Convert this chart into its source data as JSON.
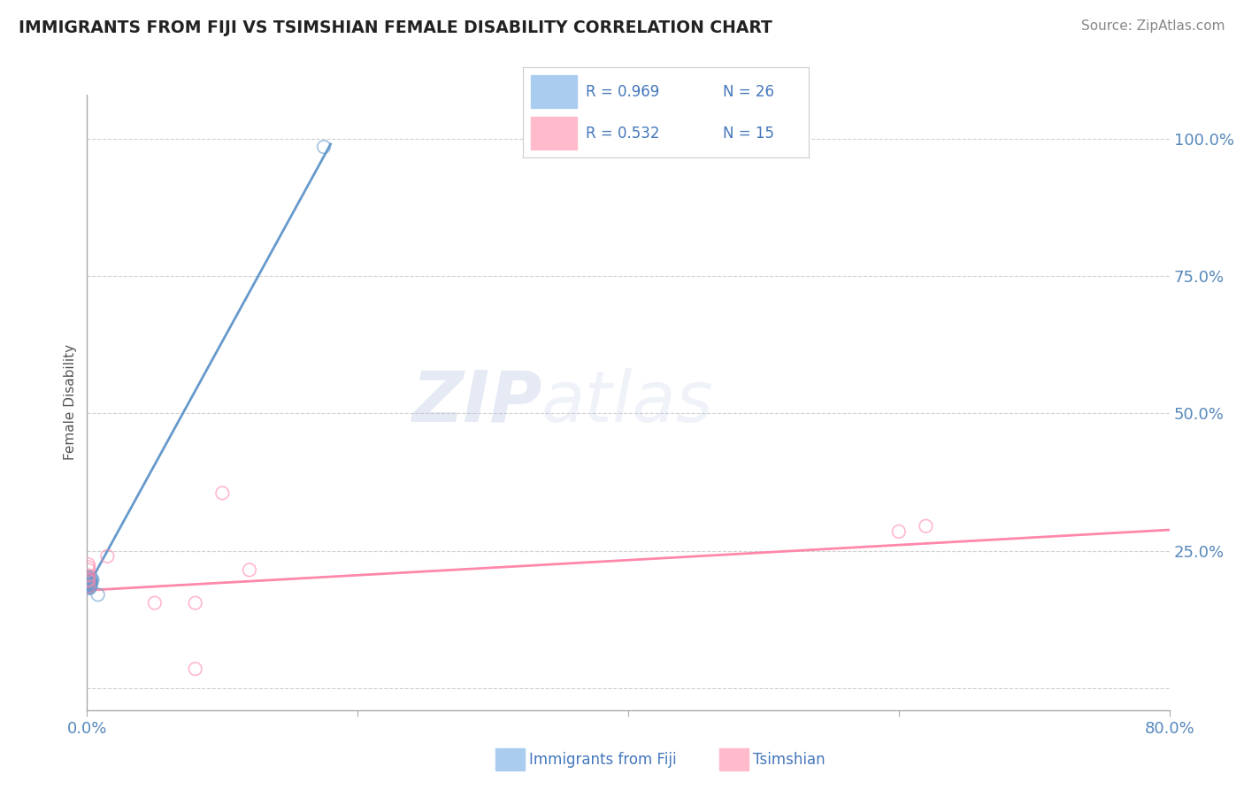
{
  "title": "IMMIGRANTS FROM FIJI VS TSIMSHIAN FEMALE DISABILITY CORRELATION CHART",
  "source": "Source: ZipAtlas.com",
  "xlabel_blue": "Immigrants from Fiji",
  "xlabel_pink": "Tsimshian",
  "ylabel": "Female Disability",
  "xlim": [
    0.0,
    0.8
  ],
  "ylim": [
    -0.04,
    1.08
  ],
  "xticks": [
    0.0,
    0.2,
    0.4,
    0.6,
    0.8
  ],
  "xtick_labels": [
    "0.0%",
    "",
    "",
    "",
    "80.0%"
  ],
  "yticks": [
    0.0,
    0.25,
    0.5,
    0.75,
    1.0
  ],
  "ytick_labels": [
    "",
    "25.0%",
    "50.0%",
    "75.0%",
    "100.0%"
  ],
  "blue_R": 0.969,
  "blue_N": 26,
  "pink_R": 0.532,
  "pink_N": 15,
  "blue_color": "#6699CC",
  "pink_color": "#FF88AA",
  "blue_patch_color": "#AACCEE",
  "pink_patch_color": "#FFBBCC",
  "legend_text_color": "#4477BB",
  "blue_scatter_x": [
    0.001,
    0.001,
    0.002,
    0.001,
    0.002,
    0.001,
    0.003,
    0.002,
    0.001,
    0.002,
    0.001,
    0.003,
    0.001,
    0.002,
    0.003,
    0.002,
    0.001,
    0.002,
    0.001,
    0.003,
    0.002,
    0.001,
    0.004,
    0.002,
    0.008,
    0.175
  ],
  "blue_scatter_y": [
    0.195,
    0.185,
    0.19,
    0.2,
    0.188,
    0.192,
    0.196,
    0.182,
    0.198,
    0.187,
    0.194,
    0.201,
    0.186,
    0.197,
    0.193,
    0.184,
    0.199,
    0.191,
    0.203,
    0.188,
    0.195,
    0.183,
    0.197,
    0.192,
    0.17,
    0.985
  ],
  "pink_scatter_x": [
    0.001,
    0.001,
    0.001,
    0.001,
    0.001,
    0.001,
    0.001,
    0.05,
    0.08,
    0.1,
    0.12,
    0.015,
    0.6,
    0.62,
    0.08
  ],
  "pink_scatter_y": [
    0.195,
    0.205,
    0.185,
    0.215,
    0.198,
    0.22,
    0.225,
    0.155,
    0.035,
    0.355,
    0.215,
    0.24,
    0.285,
    0.295,
    0.155
  ],
  "blue_trendline_x": [
    -0.005,
    0.18
  ],
  "blue_trendline_y": [
    0.16,
    0.99
  ],
  "pink_trendline_x": [
    0.0,
    0.8
  ],
  "pink_trendline_y": [
    0.178,
    0.288
  ],
  "watermark_zip": "ZIP",
  "watermark_atlas": "atlas",
  "background_color": "#FFFFFF",
  "grid_color": "#CCCCCC",
  "title_color": "#222222",
  "axis_tick_color": "#5588BB",
  "ylabel_color": "#555555"
}
